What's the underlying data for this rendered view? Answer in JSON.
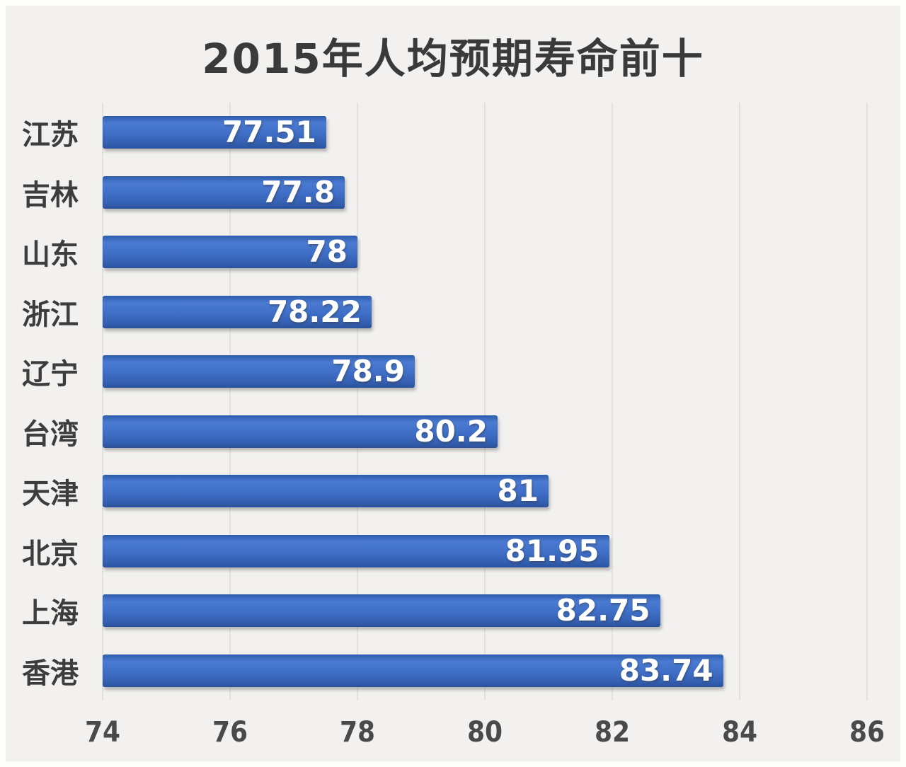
{
  "chart_data": {
    "type": "bar",
    "orientation": "horizontal",
    "title": "2015年人均预期寿命前十",
    "categories": [
      "江苏",
      "吉林",
      "山东",
      "浙江",
      "辽宁",
      "台湾",
      "天津",
      "北京",
      "上海",
      "香港"
    ],
    "values": [
      77.51,
      77.8,
      78,
      78.22,
      78.9,
      80.2,
      81,
      81.95,
      82.75,
      83.74
    ],
    "value_labels": [
      "77.51",
      "77.8",
      "78",
      "78.22",
      "78.9",
      "80.2",
      "81",
      "81.95",
      "82.75",
      "83.74"
    ],
    "xlabel": "",
    "ylabel": "",
    "xlim": [
      74,
      86
    ],
    "x_ticks": [
      74,
      76,
      78,
      80,
      82,
      84,
      86
    ],
    "x_tick_labels": [
      "74",
      "76",
      "78",
      "80",
      "82",
      "84",
      "86"
    ],
    "grid": true,
    "legend": false,
    "value_labels_position": "inside-end",
    "colors": {
      "background": "#f2f1ef",
      "bar_top": "#2e5dab",
      "bar_highlight": "#4b7ad3",
      "bar_mid": "#3f6ec6",
      "bar_low": "#345fb0",
      "bar_edge": "#2a519b",
      "value_label": "#ffffff",
      "title": "#3a3a3a",
      "category_label": "#3d3d3d",
      "tick_label": "#4a4a4a",
      "gridline": "#e2e1df"
    }
  }
}
